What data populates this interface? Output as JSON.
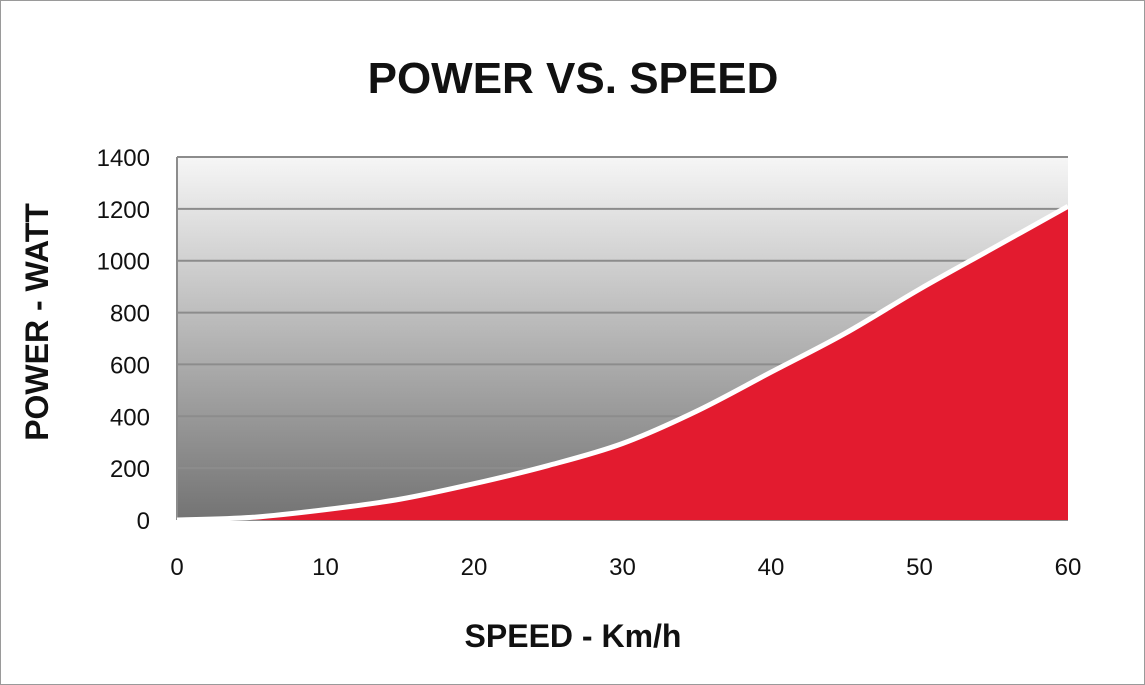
{
  "chart_data": {
    "type": "area",
    "title": "POWER VS. SPEED",
    "xlabel": "SPEED - Km/h",
    "ylabel": "POWER - WATT",
    "xlim": [
      0,
      60
    ],
    "ylim": [
      0,
      1400
    ],
    "xticks": [
      0,
      10,
      20,
      30,
      40,
      50,
      60
    ],
    "yticks": [
      0,
      200,
      400,
      600,
      800,
      1000,
      1200,
      1400
    ],
    "grid": true,
    "x": [
      0,
      5,
      10,
      15,
      20,
      25,
      30,
      35,
      40,
      45,
      50,
      55,
      60
    ],
    "values": [
      0,
      10,
      40,
      80,
      140,
      210,
      295,
      420,
      570,
      720,
      890,
      1050,
      1210
    ],
    "colors": {
      "fill": "#e31b2f",
      "line": "#ffffff",
      "background_top": "#f6f6f6",
      "background_bottom": "#737373",
      "grid": "#8c8c8c"
    }
  }
}
